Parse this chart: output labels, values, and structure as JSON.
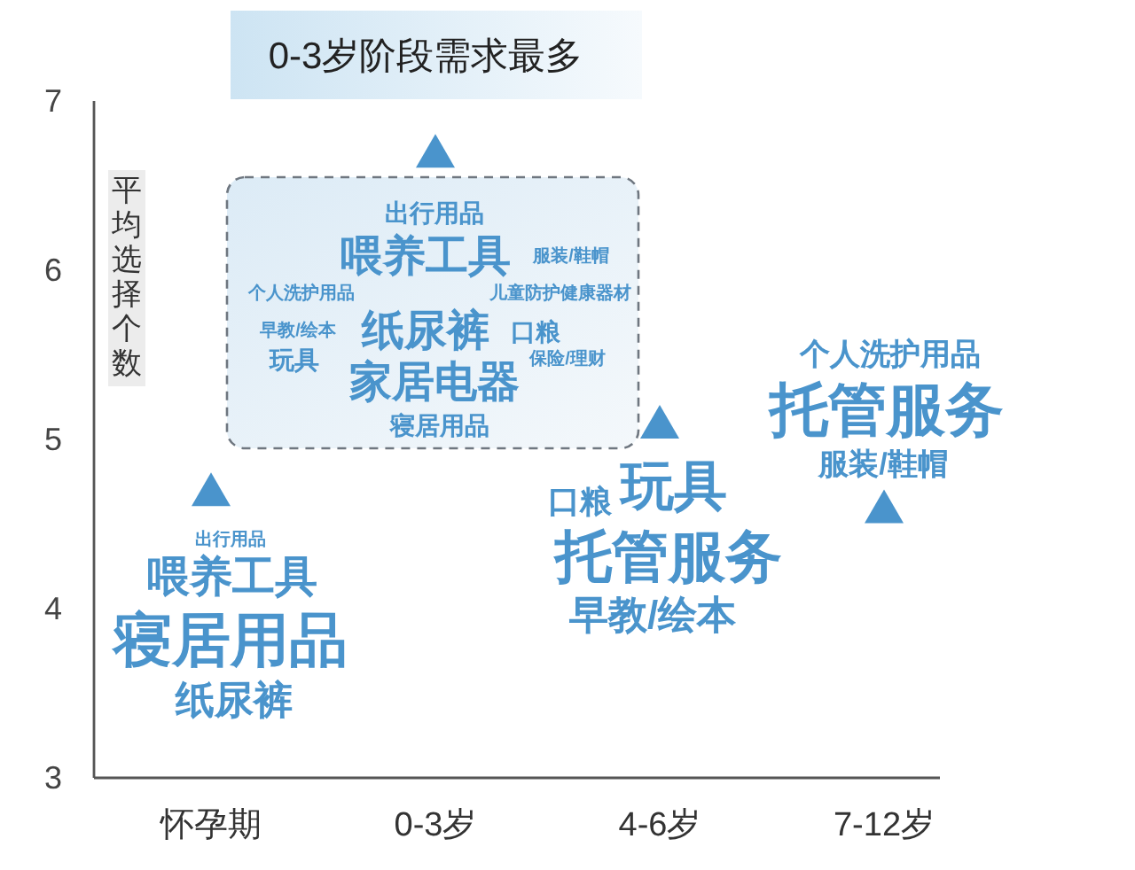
{
  "chart_data": {
    "type": "scatter",
    "title": "0-3岁阶段需求最多",
    "ylabel": "平均选择个数",
    "categories": [
      "怀孕期",
      "0-3岁",
      "4-6岁",
      "7-12岁"
    ],
    "series": [
      {
        "color": "#4a94cc",
        "values": [
          4.7,
          6.7,
          5.1,
          4.6
        ]
      }
    ],
    "marker": "triangle",
    "ylim": [
      3,
      7
    ],
    "yticks": [
      3,
      4,
      5,
      6,
      7
    ],
    "annotations": [
      "出行用品",
      "喂养工具",
      "寝居用品",
      "纸尿裤",
      "出行用品",
      "喂养工具",
      "服装/鞋帽",
      "个人洗护用品",
      "儿童防护健康器材",
      "早教/绘本",
      "纸尿裤",
      "口粮",
      "玩具",
      "保险/理财",
      "家居电器",
      "寝居用品",
      "口粮",
      "玩具",
      "托管服务",
      "早教/绘本",
      "个人洗护用品",
      "托管服务",
      "服装/鞋帽"
    ]
  }
}
